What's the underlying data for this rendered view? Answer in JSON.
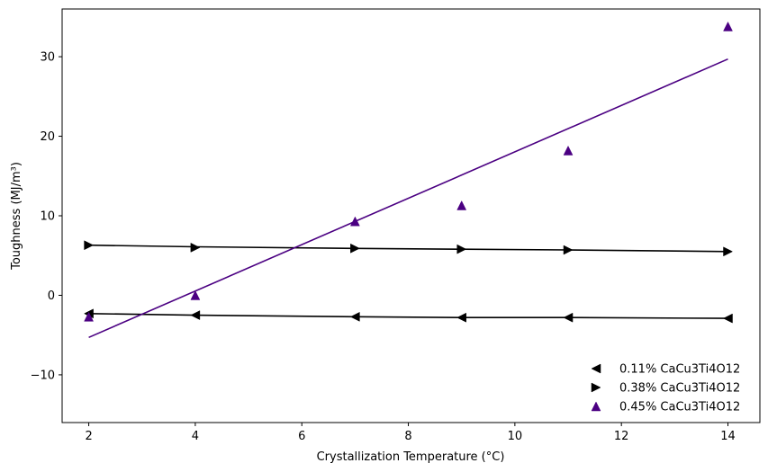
{
  "chart_data": {
    "type": "scatter",
    "xlabel": "Crystallization Temperature (°C)",
    "ylabel": "Toughness (MJ/m³)",
    "xlim": [
      1.5,
      14.6
    ],
    "ylim": [
      -16,
      36
    ],
    "x_ticks": [
      2,
      4,
      6,
      8,
      10,
      12,
      14
    ],
    "y_ticks": [
      -10,
      0,
      10,
      20,
      30
    ],
    "grid": false,
    "legend_position": "bottom-right",
    "series": [
      {
        "name": "0.11% CaCu3Ti4O12",
        "marker": "triangle-left",
        "color": "#000000",
        "x": [
          2,
          4,
          7,
          9,
          11,
          14
        ],
        "y": [
          -2.3,
          -2.5,
          -2.7,
          -2.8,
          -2.8,
          -2.9
        ],
        "fit": {
          "x": [
            2,
            4,
            7,
            9,
            11,
            14
          ],
          "y": [
            -2.3,
            -2.5,
            -2.7,
            -2.8,
            -2.8,
            -2.9
          ]
        }
      },
      {
        "name": "0.38% CaCu3Ti4O12",
        "marker": "triangle-right",
        "color": "#000000",
        "x": [
          2,
          4,
          7,
          9,
          11,
          14
        ],
        "y": [
          6.3,
          6.0,
          5.9,
          5.8,
          5.7,
          5.5
        ],
        "fit": {
          "x": [
            2,
            4,
            7,
            9,
            11,
            14
          ],
          "y": [
            6.3,
            6.1,
            5.9,
            5.8,
            5.7,
            5.5
          ]
        }
      },
      {
        "name": "0.45% CaCu3Ti4O12",
        "marker": "triangle-up",
        "color": "#4b0082",
        "x": [
          2,
          4,
          7,
          9,
          11,
          14
        ],
        "y": [
          -2.7,
          0.0,
          9.3,
          11.3,
          18.2,
          33.8
        ],
        "fit": {
          "x": [
            2,
            14
          ],
          "y": [
            -5.3,
            29.7
          ]
        }
      }
    ]
  }
}
